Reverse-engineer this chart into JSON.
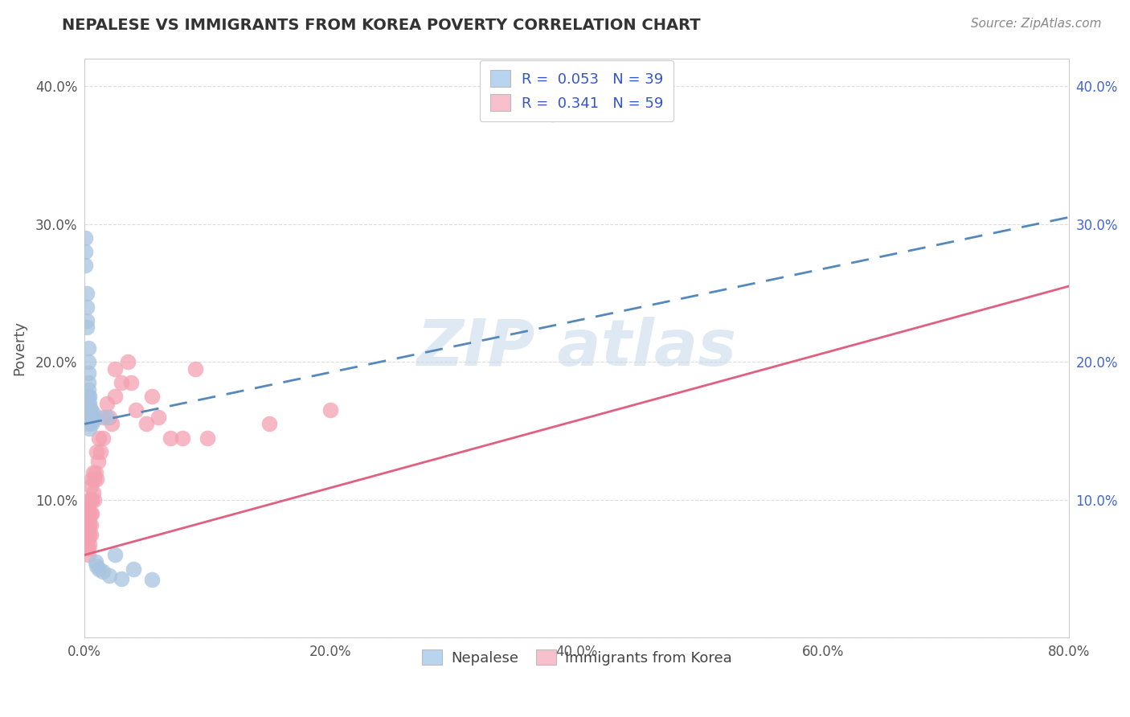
{
  "title": "NEPALESE VS IMMIGRANTS FROM KOREA POVERTY CORRELATION CHART",
  "source": "Source: ZipAtlas.com",
  "ylabel": "Poverty",
  "xlim": [
    0.0,
    0.8
  ],
  "ylim": [
    0.0,
    0.42
  ],
  "xticks": [
    0.0,
    0.2,
    0.4,
    0.6,
    0.8
  ],
  "xticklabels": [
    "0.0%",
    "20.0%",
    "40.0%",
    "60.0%",
    "80.0%"
  ],
  "yticks": [
    0.0,
    0.1,
    0.2,
    0.3,
    0.4
  ],
  "yticklabels_left": [
    "",
    "10.0%",
    "20.0%",
    "30.0%",
    "40.0%"
  ],
  "yticklabels_right": [
    "",
    "10.0%",
    "20.0%",
    "30.0%",
    "40.0%"
  ],
  "nepalese_R": "0.053",
  "nepalese_N": "39",
  "korea_R": "0.341",
  "korea_N": "59",
  "nepalese_color": "#a8c4e0",
  "korea_color": "#f4a0b0",
  "nepalese_line_color": "#5588bb",
  "korea_line_color": "#e06080",
  "legend_nepalese_color": "#b8d4ee",
  "legend_korea_color": "#f8c0cc",
  "nepalese_x": [
    0.001,
    0.001,
    0.001,
    0.002,
    0.002,
    0.002,
    0.002,
    0.003,
    0.003,
    0.003,
    0.003,
    0.003,
    0.003,
    0.004,
    0.004,
    0.004,
    0.004,
    0.004,
    0.004,
    0.004,
    0.004,
    0.005,
    0.005,
    0.005,
    0.005,
    0.006,
    0.006,
    0.007,
    0.008,
    0.009,
    0.01,
    0.012,
    0.015,
    0.018,
    0.02,
    0.025,
    0.03,
    0.04,
    0.055
  ],
  "nepalese_y": [
    0.29,
    0.28,
    0.27,
    0.25,
    0.24,
    0.23,
    0.225,
    0.21,
    0.2,
    0.192,
    0.185,
    0.18,
    0.175,
    0.175,
    0.17,
    0.168,
    0.165,
    0.162,
    0.158,
    0.155,
    0.152,
    0.165,
    0.162,
    0.16,
    0.158,
    0.16,
    0.155,
    0.163,
    0.158,
    0.055,
    0.052,
    0.05,
    0.048,
    0.16,
    0.045,
    0.06,
    0.043,
    0.05,
    0.042
  ],
  "korea_x": [
    0.001,
    0.001,
    0.001,
    0.002,
    0.002,
    0.002,
    0.002,
    0.002,
    0.003,
    0.003,
    0.003,
    0.003,
    0.003,
    0.003,
    0.003,
    0.004,
    0.004,
    0.004,
    0.004,
    0.004,
    0.005,
    0.005,
    0.005,
    0.005,
    0.005,
    0.006,
    0.006,
    0.006,
    0.007,
    0.007,
    0.008,
    0.008,
    0.009,
    0.01,
    0.01,
    0.011,
    0.012,
    0.013,
    0.015,
    0.015,
    0.018,
    0.02,
    0.022,
    0.025,
    0.025,
    0.03,
    0.035,
    0.038,
    0.042,
    0.05,
    0.055,
    0.06,
    0.07,
    0.08,
    0.09,
    0.1,
    0.15,
    0.2,
    0.38
  ],
  "korea_y": [
    0.095,
    0.085,
    0.075,
    0.095,
    0.088,
    0.08,
    0.073,
    0.065,
    0.095,
    0.09,
    0.085,
    0.078,
    0.072,
    0.065,
    0.06,
    0.1,
    0.09,
    0.082,
    0.075,
    0.068,
    0.11,
    0.1,
    0.09,
    0.082,
    0.075,
    0.115,
    0.1,
    0.09,
    0.12,
    0.105,
    0.115,
    0.1,
    0.12,
    0.135,
    0.115,
    0.128,
    0.145,
    0.135,
    0.16,
    0.145,
    0.17,
    0.16,
    0.155,
    0.175,
    0.195,
    0.185,
    0.2,
    0.185,
    0.165,
    0.155,
    0.175,
    0.16,
    0.145,
    0.145,
    0.195,
    0.145,
    0.155,
    0.165,
    0.38
  ],
  "background_color": "#ffffff",
  "grid_color": "#dddddd",
  "nepalese_line_x": [
    0.0,
    0.8
  ],
  "nepalese_line_y": [
    0.155,
    0.305
  ],
  "korea_line_x": [
    0.0,
    0.8
  ],
  "korea_line_y": [
    0.06,
    0.255
  ]
}
